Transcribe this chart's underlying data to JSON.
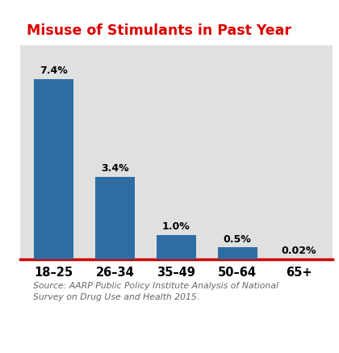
{
  "title": "Misuse of Stimulants in Past Year",
  "title_color": "#dd0000",
  "title_fontsize": 12.5,
  "categories": [
    "18–25",
    "26–34",
    "35–49",
    "50–64",
    "65+"
  ],
  "values": [
    7.4,
    3.4,
    1.0,
    0.5,
    0.02
  ],
  "labels": [
    "7.4%",
    "3.4%",
    "1.0%",
    "0.5%",
    "0.02%"
  ],
  "bar_color": "#2e6da4",
  "chart_bg": "#e0e0e0",
  "fig_bg": "#ffffff",
  "source_bg": "#e0e0e0",
  "source_text": "Source: AARP Public Policy Institute Analysis of National\nSurvey on Drug Use and Health 2015.",
  "source_color": "#666666",
  "axisline_color": "#cc0000",
  "ylim": [
    0,
    8.8
  ],
  "bar_width": 0.65,
  "label_fontsize": 9,
  "xtick_fontsize": 10.5
}
